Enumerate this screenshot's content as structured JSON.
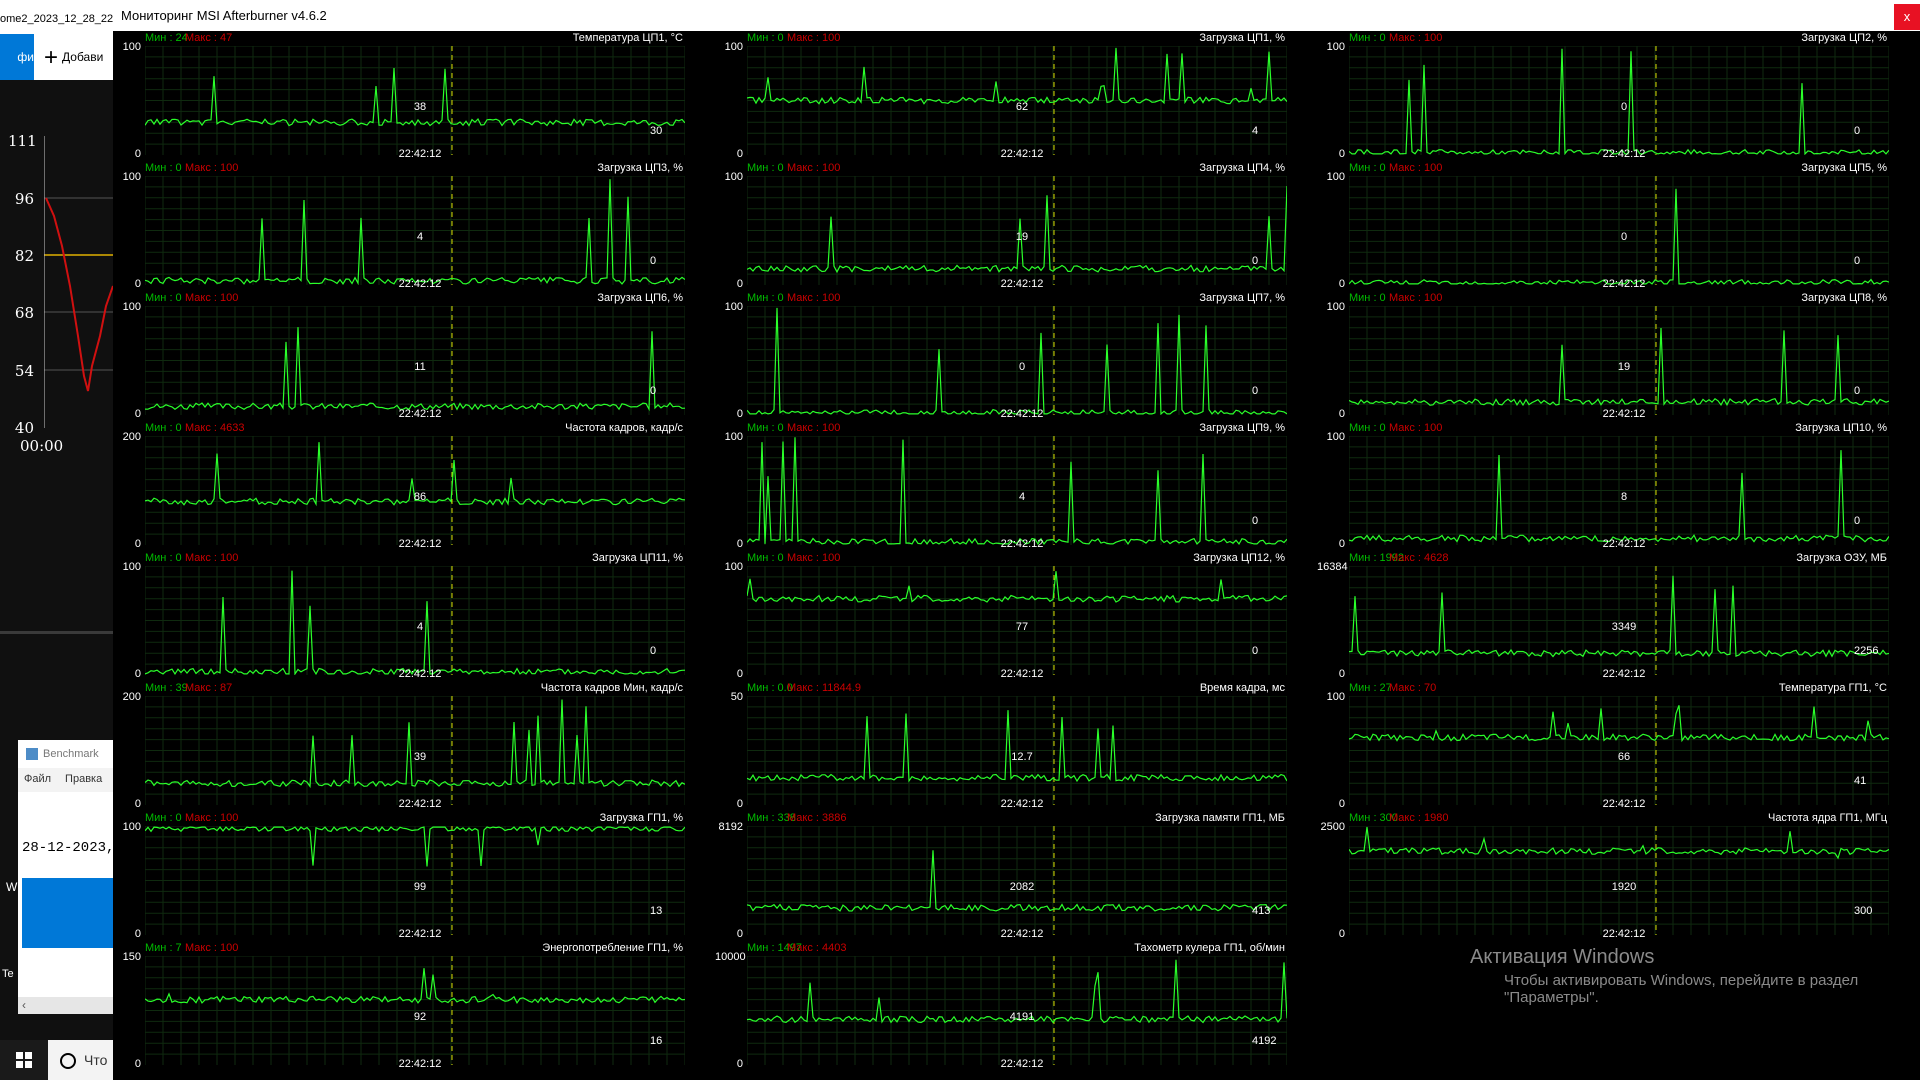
{
  "background_window": {
    "title": "ome2_2023_12_28_22",
    "tab_label": "фи",
    "add_label": "Добави",
    "chart_axis": [
      "111",
      "96",
      "82",
      "68",
      "54",
      "40"
    ],
    "chart_time": "00:00"
  },
  "benchmark_window": {
    "title": "Benchmark",
    "menu": [
      "Файл",
      "Правка"
    ],
    "date_text": "28-12-2023,",
    "w_text": "W",
    "te_text": "Te"
  },
  "taskbar": {
    "search_text": "Что"
  },
  "afterburner": {
    "title": "Мониторинг MSI Afterburner v4.6.2",
    "close_label": "x",
    "graphs": [
      {
        "title": "Температура ЦП1, °C",
        "min": "Мин : 24",
        "max": "Макс : 47",
        "y_max": "100",
        "y_min": "0",
        "current": "30",
        "center_value": "38",
        "time": "22:42:12",
        "baseline": 0.3
      },
      {
        "title": "Загрузка ЦП1, %",
        "min": "Мин : 0",
        "max": "Макс : 100",
        "y_max": "100",
        "y_min": "0",
        "current": "4",
        "center_value": "62",
        "time": "22:42:12",
        "baseline": 0.5
      },
      {
        "title": "Загрузка ЦП2, %",
        "min": "Мин : 0",
        "max": "Макс : 100",
        "y_max": "100",
        "y_min": "0",
        "current": "0",
        "center_value": "0",
        "time": "22:42:12",
        "baseline": 0.02
      },
      {
        "title": "Загрузка ЦП3, %",
        "min": "Мин : 0",
        "max": "Макс : 100",
        "y_max": "100",
        "y_min": "0",
        "current": "0",
        "center_value": "4",
        "time": "22:42:12",
        "baseline": 0.04
      },
      {
        "title": "Загрузка ЦП4, %",
        "min": "Мин : 0",
        "max": "Макс : 100",
        "y_max": "100",
        "y_min": "0",
        "current": "0",
        "center_value": "19",
        "time": "22:42:12",
        "baseline": 0.15
      },
      {
        "title": "Загрузка ЦП5, %",
        "min": "Мин : 0",
        "max": "Макс : 100",
        "y_max": "100",
        "y_min": "0",
        "current": "0",
        "center_value": "0",
        "time": "22:42:12",
        "baseline": 0.02
      },
      {
        "title": "Загрузка ЦП6, %",
        "min": "Мин : 0",
        "max": "Макс : 100",
        "y_max": "100",
        "y_min": "0",
        "current": "0",
        "center_value": "11",
        "time": "22:42:12",
        "baseline": 0.08
      },
      {
        "title": "Загрузка ЦП7, %",
        "min": "Мин : 0",
        "max": "Макс : 100",
        "y_max": "100",
        "y_min": "0",
        "current": "0",
        "center_value": "0",
        "time": "22:42:12",
        "baseline": 0.02
      },
      {
        "title": "Загрузка ЦП8, %",
        "min": "Мин : 0",
        "max": "Макс : 100",
        "y_max": "100",
        "y_min": "0",
        "current": "0",
        "center_value": "19",
        "time": "22:42:12",
        "baseline": 0.12
      },
      {
        "title": "Частота кадров, кадр/с",
        "min": "Мин : 0",
        "max": "Макс : 4633",
        "y_max": "200",
        "y_min": "0",
        "current": "",
        "center_value": "86",
        "time": "22:42:12",
        "baseline": 0.4
      },
      {
        "title": "Загрузка ЦП9, %",
        "min": "Мин : 0",
        "max": "Макс : 100",
        "y_max": "100",
        "y_min": "0",
        "current": "0",
        "center_value": "4",
        "time": "22:42:12",
        "baseline": 0.03
      },
      {
        "title": "Загрузка ЦП10, %",
        "min": "Мин : 0",
        "max": "Макс : 100",
        "y_max": "100",
        "y_min": "0",
        "current": "0",
        "center_value": "8",
        "time": "22:42:12",
        "baseline": 0.06
      },
      {
        "title": "Загрузка ЦП11, %",
        "min": "Мин : 0",
        "max": "Макс : 100",
        "y_max": "100",
        "y_min": "0",
        "current": "0",
        "center_value": "4",
        "time": "22:42:12",
        "baseline": 0.03
      },
      {
        "title": "Загрузка ЦП12, %",
        "min": "Мин : 0",
        "max": "Макс : 100",
        "y_max": "100",
        "y_min": "0",
        "current": "0",
        "center_value": "77",
        "time": "22:42:12",
        "baseline": 0.7
      },
      {
        "title": "Загрузка ОЗУ, МБ",
        "min": "Мин : 1992",
        "max": "Макс : 4628",
        "y_max": "16384",
        "y_min": "0",
        "current": "2256",
        "center_value": "3349",
        "time": "22:42:12",
        "baseline": 0.2
      },
      {
        "title": "Частота кадров Мин, кадр/с",
        "min": "Мин : 39",
        "max": "Макс : 87",
        "y_max": "200",
        "y_min": "0",
        "current": "",
        "center_value": "39",
        "time": "22:42:12",
        "baseline": 0.2
      },
      {
        "title": "Время кадра, мс",
        "min": "Мин : 0.0",
        "max": "Макс : 11844.9",
        "y_max": "50",
        "y_min": "0",
        "current": "",
        "center_value": "12.7",
        "time": "22:42:12",
        "baseline": 0.25
      },
      {
        "title": "Температура ГП1, °C",
        "min": "Мин : 27",
        "max": "Макс : 70",
        "y_max": "100",
        "y_min": "0",
        "current": "41",
        "center_value": "66",
        "time": "22:42:12",
        "baseline": 0.62
      },
      {
        "title": "Загрузка ГП1, %",
        "min": "Мин : 0",
        "max": "Макс : 100",
        "y_max": "100",
        "y_min": "0",
        "current": "13",
        "center_value": "99",
        "time": "22:42:12",
        "baseline": 0.98
      },
      {
        "title": "Загрузка памяти ГП1, МБ",
        "min": "Мин : 338",
        "max": "Макс : 3886",
        "y_max": "8192",
        "y_min": "0",
        "current": "413",
        "center_value": "2082",
        "time": "22:42:12",
        "baseline": 0.25
      },
      {
        "title": "Частота ядра ГП1, МГц",
        "min": "Мин : 300",
        "max": "Макс : 1980",
        "y_max": "2500",
        "y_min": "0",
        "current": "300",
        "center_value": "1920",
        "time": "22:42:12",
        "baseline": 0.77
      },
      {
        "title": "Энергопотребление ГП1, %",
        "min": "Мин : 7",
        "max": "Макс : 100",
        "y_max": "150",
        "y_min": "0",
        "current": "16",
        "center_value": "92",
        "time": "22:42:12",
        "baseline": 0.6
      },
      {
        "title": "Тахометр кулера ГП1, об/мин",
        "min": "Мин : 1497",
        "max": "Макс : 4403",
        "y_max": "10000",
        "y_min": "0",
        "current": "4192",
        "center_value": "4191",
        "time": "22:42:12",
        "baseline": 0.42
      }
    ]
  },
  "activation": {
    "title": "Активация Windows",
    "text": "Чтобы активировать Windows, перейдите в раздел \"Параметры\"."
  }
}
